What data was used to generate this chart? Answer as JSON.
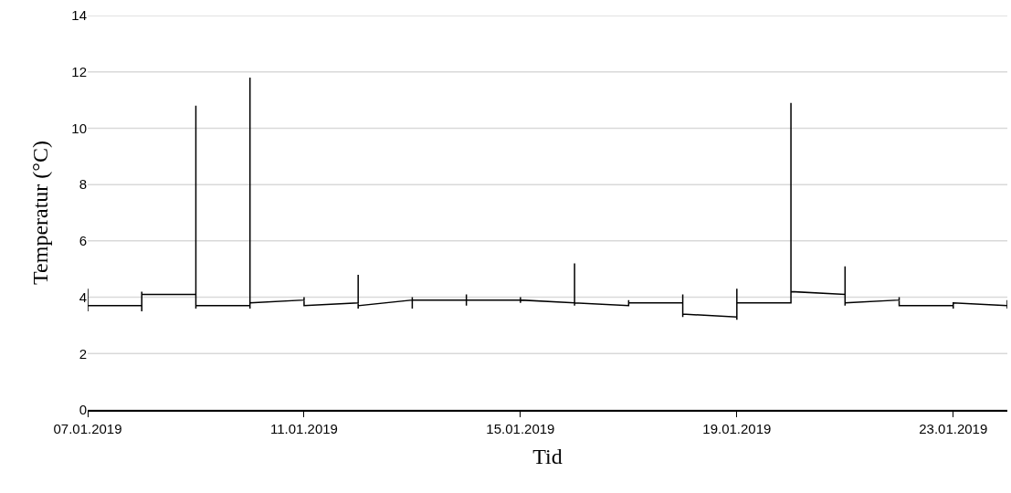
{
  "chart_data": {
    "type": "line",
    "xlabel": "Tid",
    "ylabel": "Temperatur (°C)",
    "x": [
      "2019-01-07T00:00",
      "2019-01-07T00:00",
      "2019-01-07T00:00",
      "2019-01-08T00:00",
      "2019-01-08T00:00",
      "2019-01-08T00:00",
      "2019-01-08T00:00",
      "2019-01-09T00:00",
      "2019-01-09T00:00",
      "2019-01-09T00:00",
      "2019-01-09T00:00",
      "2019-01-10T00:00",
      "2019-01-10T00:00",
      "2019-01-10T00:00",
      "2019-01-10T00:00",
      "2019-01-11T00:00",
      "2019-01-11T00:00",
      "2019-01-11T00:00",
      "2019-01-12T00:00",
      "2019-01-12T00:00",
      "2019-01-12T00:00",
      "2019-01-12T00:00",
      "2019-01-13T00:00",
      "2019-01-13T00:00",
      "2019-01-13T00:00",
      "2019-01-13T00:00",
      "2019-01-14T00:00",
      "2019-01-14T00:00",
      "2019-01-14T00:00",
      "2019-01-14T00:00",
      "2019-01-15T00:00",
      "2019-01-15T00:00",
      "2019-01-15T00:00",
      "2019-01-15T00:00",
      "2019-01-16T00:00",
      "2019-01-16T00:00",
      "2019-01-16T00:00",
      "2019-01-16T00:00",
      "2019-01-17T00:00",
      "2019-01-17T00:00",
      "2019-01-17T00:00",
      "2019-01-17T00:00",
      "2019-01-18T00:00",
      "2019-01-18T00:00",
      "2019-01-18T00:00",
      "2019-01-18T00:00",
      "2019-01-19T00:00",
      "2019-01-19T00:00",
      "2019-01-19T00:00",
      "2019-01-19T00:00",
      "2019-01-20T00:00",
      "2019-01-20T00:00",
      "2019-01-20T00:00",
      "2019-01-20T00:00",
      "2019-01-21T00:00",
      "2019-01-21T00:00",
      "2019-01-21T00:00",
      "2019-01-21T00:00",
      "2019-01-22T00:00",
      "2019-01-22T00:00",
      "2019-01-22T00:00",
      "2019-01-22T00:00",
      "2019-01-23T00:00",
      "2019-01-23T00:00",
      "2019-01-23T00:00",
      "2019-01-23T00:00",
      "2019-01-24T00:00",
      "2019-01-24T00:00",
      "2019-01-24T00:00"
    ],
    "series": [
      {
        "color": "#000000",
        "values": [
          4.3,
          3.5,
          3.7,
          3.7,
          4.2,
          3.5,
          4.1,
          4.1,
          10.8,
          3.6,
          3.7,
          3.7,
          11.8,
          3.6,
          3.8,
          3.9,
          4.0,
          3.7,
          3.8,
          4.8,
          3.6,
          3.7,
          3.9,
          4.0,
          3.6,
          3.9,
          3.9,
          4.1,
          3.7,
          3.9,
          3.9,
          4.0,
          3.8,
          3.9,
          3.8,
          5.2,
          3.7,
          3.8,
          3.7,
          3.9,
          3.7,
          3.8,
          3.8,
          4.1,
          3.3,
          3.4,
          3.3,
          4.3,
          3.2,
          3.8,
          3.8,
          10.9,
          3.8,
          4.2,
          4.1,
          5.1,
          3.7,
          3.8,
          3.9,
          4.0,
          3.7,
          3.7,
          3.7,
          3.8,
          3.6,
          3.8,
          3.7,
          3.9,
          3.6
        ]
      }
    ],
    "xlim": [
      "2019-01-07",
      "2019-01-24"
    ],
    "xticks": [
      {
        "value": "2019-01-07",
        "label": "07.01.2019"
      },
      {
        "value": "2019-01-11",
        "label": "11.01.2019"
      },
      {
        "value": "2019-01-15",
        "label": "15.01.2019"
      },
      {
        "value": "2019-01-19",
        "label": "19.01.2019"
      },
      {
        "value": "2019-01-23",
        "label": "23.01.2019"
      }
    ],
    "ylim": [
      0,
      14
    ],
    "yticks": [
      0,
      2,
      4,
      6,
      8,
      10,
      12,
      14
    ],
    "grid": "y",
    "marker": "none",
    "line_style": "solid"
  }
}
